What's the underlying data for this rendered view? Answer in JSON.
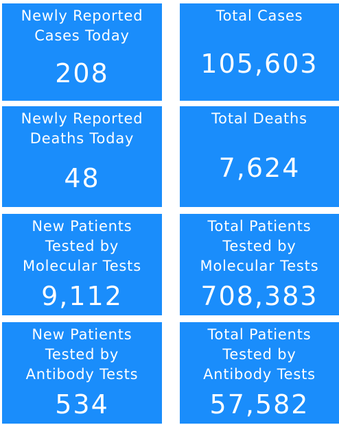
{
  "tiles": [
    {
      "label": [
        "Newly Reported",
        "Cases Today"
      ],
      "value": "208"
    },
    {
      "label": [
        "Total Cases"
      ],
      "value": "105,603"
    },
    {
      "label": [
        "Newly Reported",
        "Deaths Today"
      ],
      "value": "48"
    },
    {
      "label": [
        "Total Deaths"
      ],
      "value": "7,624"
    },
    {
      "label": [
        "New Patients",
        "Tested by",
        "Molecular Tests"
      ],
      "value": "9,112"
    },
    {
      "label": [
        "Total Patients",
        "Tested by",
        "Molecular Tests"
      ],
      "value": "708,383"
    },
    {
      "label": [
        "New Patients",
        "Tested by",
        "Antibody Tests"
      ],
      "value": "534"
    },
    {
      "label": [
        "Total Patients",
        "Tested by",
        "Antibody Tests"
      ],
      "value": "57,582"
    }
  ]
}
